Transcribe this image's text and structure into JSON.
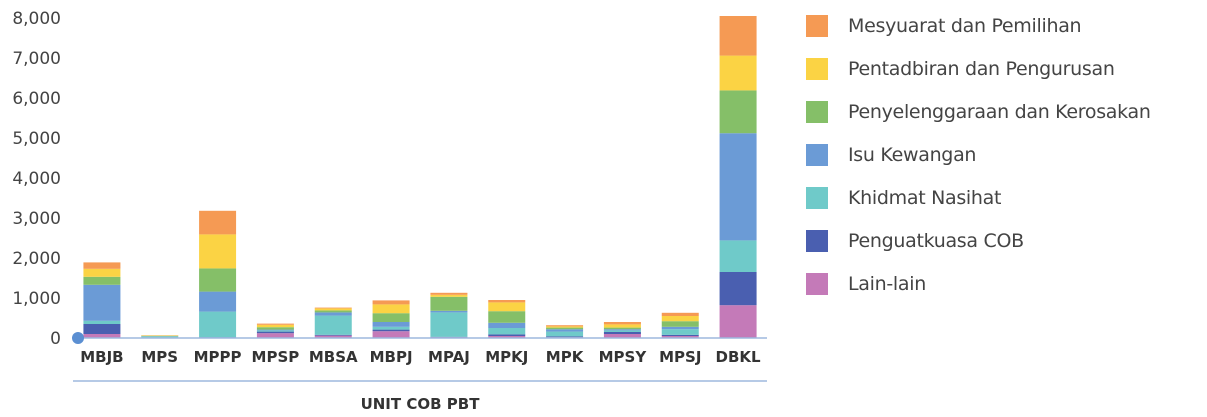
{
  "chart_data": {
    "type": "bar",
    "stacked": true,
    "xlabel": "UNIT COB PBT",
    "ylabel": "",
    "ylim": [
      0,
      8000
    ],
    "yticks": [
      "0",
      "1,000",
      "2,000",
      "3,000",
      "4,000",
      "5,000",
      "6,000",
      "7,000",
      "8,000"
    ],
    "grid": false,
    "legend_position": "right",
    "categories": [
      "MBJB",
      "MPS",
      "MPPP",
      "MPSP",
      "MBSA",
      "MBPJ",
      "MPAJ",
      "MPKJ",
      "MPK",
      "MPSY",
      "MPSJ",
      "DBKL"
    ],
    "series": [
      {
        "name": "Lain-lain",
        "color": "#c47ab8",
        "values": [
          100,
          10,
          10,
          120,
          60,
          170,
          20,
          50,
          20,
          100,
          50,
          820
        ]
      },
      {
        "name": "Penguatkuasa COB",
        "color": "#4a5fb0",
        "values": [
          250,
          5,
          10,
          40,
          20,
          40,
          10,
          40,
          20,
          50,
          30,
          830
        ]
      },
      {
        "name": "Khidmat Nasihat",
        "color": "#6fcac9",
        "values": [
          80,
          25,
          640,
          30,
          480,
          70,
          610,
          160,
          120,
          40,
          140,
          790
        ]
      },
      {
        "name": "Isu Kewangan",
        "color": "#6b9bd6",
        "values": [
          900,
          5,
          500,
          20,
          80,
          120,
          40,
          130,
          60,
          30,
          60,
          2680
        ]
      },
      {
        "name": "Penyelenggaraan dan Kerosakan",
        "color": "#85bf68",
        "values": [
          200,
          10,
          580,
          60,
          50,
          220,
          350,
          290,
          40,
          40,
          140,
          1070
        ]
      },
      {
        "name": "Pentadbiran dan Pengurusan",
        "color": "#fbd344",
        "values": [
          200,
          10,
          850,
          60,
          50,
          220,
          50,
          220,
          30,
          80,
          130,
          870
        ]
      },
      {
        "name": "Mesyuarat dan Pemilihan",
        "color": "#f59a54",
        "values": [
          160,
          5,
          590,
          30,
          20,
          100,
          50,
          60,
          30,
          60,
          80,
          990
        ]
      }
    ]
  }
}
